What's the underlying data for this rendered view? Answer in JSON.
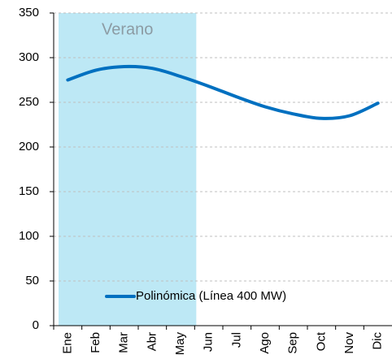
{
  "chart_data": {
    "type": "line",
    "categories": [
      "Ene",
      "Feb",
      "Mar",
      "Abr",
      "May",
      "Jun",
      "Jul",
      "Ago",
      "Sep",
      "Oct",
      "Nov",
      "Dic"
    ],
    "series": [
      {
        "name": "Polinómica (Línea 400 MW)",
        "color": "#0070c0",
        "values": [
          275,
          286,
          290,
          288,
          279,
          268,
          256,
          245,
          237,
          232,
          235,
          249
        ]
      }
    ],
    "ylim": [
      0,
      350
    ],
    "yticks": [
      0,
      50,
      100,
      150,
      200,
      250,
      300,
      350
    ],
    "grid": true,
    "legend": "lower center",
    "shade": {
      "from": "Ene",
      "to": "May",
      "label": "Verano",
      "color": "#bde8f5"
    }
  }
}
